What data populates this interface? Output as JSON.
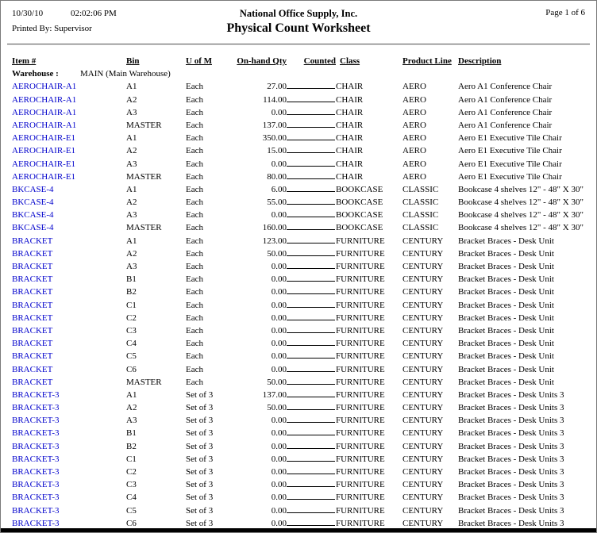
{
  "report": {
    "date": "10/30/10",
    "time": "02:02:06 PM",
    "company": "National Office Supply, Inc.",
    "page_info": "Page 1 of 6",
    "printed_by": "Printed By: Supervisor",
    "title": "Physical Count Worksheet"
  },
  "worksheet": {
    "columns": {
      "item": "Item #",
      "bin": "Bin",
      "uofm": "U of M",
      "qty": "On-hand Qty",
      "counted": "Counted",
      "class": "Class",
      "product_line": "Product Line",
      "description": "Description"
    },
    "warehouse": {
      "label": "Warehouse :",
      "value": "MAIN (Main Warehouse)"
    },
    "rows": [
      {
        "item": "AEROCHAIR-A1",
        "bin": "A1",
        "uofm": "Each",
        "qty": "27.00",
        "class": "CHAIR",
        "product_line": "AERO",
        "description": "Aero A1 Conference Chair"
      },
      {
        "item": "AEROCHAIR-A1",
        "bin": "A2",
        "uofm": "Each",
        "qty": "114.00",
        "class": "CHAIR",
        "product_line": "AERO",
        "description": "Aero A1 Conference Chair"
      },
      {
        "item": "AEROCHAIR-A1",
        "bin": "A3",
        "uofm": "Each",
        "qty": "0.00",
        "class": "CHAIR",
        "product_line": "AERO",
        "description": "Aero A1 Conference Chair"
      },
      {
        "item": "AEROCHAIR-A1",
        "bin": "MASTER",
        "uofm": "Each",
        "qty": "137.00",
        "class": "CHAIR",
        "product_line": "AERO",
        "description": "Aero A1 Conference Chair"
      },
      {
        "item": "AEROCHAIR-E1",
        "bin": "A1",
        "uofm": "Each",
        "qty": "350.00",
        "class": "CHAIR",
        "product_line": "AERO",
        "description": "Aero E1 Executive Tile Chair"
      },
      {
        "item": "AEROCHAIR-E1",
        "bin": "A2",
        "uofm": "Each",
        "qty": "15.00",
        "class": "CHAIR",
        "product_line": "AERO",
        "description": "Aero E1 Executive Tile Chair"
      },
      {
        "item": "AEROCHAIR-E1",
        "bin": "A3",
        "uofm": "Each",
        "qty": "0.00",
        "class": "CHAIR",
        "product_line": "AERO",
        "description": "Aero E1 Executive Tile Chair"
      },
      {
        "item": "AEROCHAIR-E1",
        "bin": "MASTER",
        "uofm": "Each",
        "qty": "80.00",
        "class": "CHAIR",
        "product_line": "AERO",
        "description": "Aero E1 Executive Tile Chair"
      },
      {
        "item": "BKCASE-4",
        "bin": "A1",
        "uofm": "Each",
        "qty": "6.00",
        "class": "BOOKCASE",
        "product_line": "CLASSIC",
        "description": "Bookcase 4 shelves 12\" - 48\" X 30\""
      },
      {
        "item": "BKCASE-4",
        "bin": "A2",
        "uofm": "Each",
        "qty": "55.00",
        "class": "BOOKCASE",
        "product_line": "CLASSIC",
        "description": "Bookcase 4 shelves 12\" - 48\" X 30\""
      },
      {
        "item": "BKCASE-4",
        "bin": "A3",
        "uofm": "Each",
        "qty": "0.00",
        "class": "BOOKCASE",
        "product_line": "CLASSIC",
        "description": "Bookcase 4 shelves 12\" - 48\" X 30\""
      },
      {
        "item": "BKCASE-4",
        "bin": "MASTER",
        "uofm": "Each",
        "qty": "160.00",
        "class": "BOOKCASE",
        "product_line": "CLASSIC",
        "description": "Bookcase 4 shelves 12\" - 48\" X 30\""
      },
      {
        "item": "BRACKET",
        "bin": "A1",
        "uofm": "Each",
        "qty": "123.00",
        "class": "FURNITURE",
        "product_line": "CENTURY",
        "description": "Bracket Braces - Desk Unit"
      },
      {
        "item": "BRACKET",
        "bin": "A2",
        "uofm": "Each",
        "qty": "50.00",
        "class": "FURNITURE",
        "product_line": "CENTURY",
        "description": "Bracket Braces - Desk Unit"
      },
      {
        "item": "BRACKET",
        "bin": "A3",
        "uofm": "Each",
        "qty": "0.00",
        "class": "FURNITURE",
        "product_line": "CENTURY",
        "description": "Bracket Braces - Desk Unit"
      },
      {
        "item": "BRACKET",
        "bin": "B1",
        "uofm": "Each",
        "qty": "0.00",
        "class": "FURNITURE",
        "product_line": "CENTURY",
        "description": "Bracket Braces - Desk Unit"
      },
      {
        "item": "BRACKET",
        "bin": "B2",
        "uofm": "Each",
        "qty": "0.00",
        "class": "FURNITURE",
        "product_line": "CENTURY",
        "description": "Bracket Braces - Desk Unit"
      },
      {
        "item": "BRACKET",
        "bin": "C1",
        "uofm": "Each",
        "qty": "0.00",
        "class": "FURNITURE",
        "product_line": "CENTURY",
        "description": "Bracket Braces - Desk Unit"
      },
      {
        "item": "BRACKET",
        "bin": "C2",
        "uofm": "Each",
        "qty": "0.00",
        "class": "FURNITURE",
        "product_line": "CENTURY",
        "description": "Bracket Braces - Desk Unit"
      },
      {
        "item": "BRACKET",
        "bin": "C3",
        "uofm": "Each",
        "qty": "0.00",
        "class": "FURNITURE",
        "product_line": "CENTURY",
        "description": "Bracket Braces - Desk Unit"
      },
      {
        "item": "BRACKET",
        "bin": "C4",
        "uofm": "Each",
        "qty": "0.00",
        "class": "FURNITURE",
        "product_line": "CENTURY",
        "description": "Bracket Braces - Desk Unit"
      },
      {
        "item": "BRACKET",
        "bin": "C5",
        "uofm": "Each",
        "qty": "0.00",
        "class": "FURNITURE",
        "product_line": "CENTURY",
        "description": "Bracket Braces - Desk Unit"
      },
      {
        "item": "BRACKET",
        "bin": "C6",
        "uofm": "Each",
        "qty": "0.00",
        "class": "FURNITURE",
        "product_line": "CENTURY",
        "description": "Bracket Braces - Desk Unit"
      },
      {
        "item": "BRACKET",
        "bin": "MASTER",
        "uofm": "Each",
        "qty": "50.00",
        "class": "FURNITURE",
        "product_line": "CENTURY",
        "description": "Bracket Braces - Desk Unit"
      },
      {
        "item": "BRACKET-3",
        "bin": "A1",
        "uofm": "Set of 3",
        "qty": "137.00",
        "class": "FURNITURE",
        "product_line": "CENTURY",
        "description": "Bracket Braces - Desk Units 3"
      },
      {
        "item": "BRACKET-3",
        "bin": "A2",
        "uofm": "Set of 3",
        "qty": "50.00",
        "class": "FURNITURE",
        "product_line": "CENTURY",
        "description": "Bracket Braces - Desk Units 3"
      },
      {
        "item": "BRACKET-3",
        "bin": "A3",
        "uofm": "Set of 3",
        "qty": "0.00",
        "class": "FURNITURE",
        "product_line": "CENTURY",
        "description": "Bracket Braces - Desk Units 3"
      },
      {
        "item": "BRACKET-3",
        "bin": "B1",
        "uofm": "Set of 3",
        "qty": "0.00",
        "class": "FURNITURE",
        "product_line": "CENTURY",
        "description": "Bracket Braces - Desk Units 3"
      },
      {
        "item": "BRACKET-3",
        "bin": "B2",
        "uofm": "Set of 3",
        "qty": "0.00",
        "class": "FURNITURE",
        "product_line": "CENTURY",
        "description": "Bracket Braces - Desk Units 3"
      },
      {
        "item": "BRACKET-3",
        "bin": "C1",
        "uofm": "Set of 3",
        "qty": "0.00",
        "class": "FURNITURE",
        "product_line": "CENTURY",
        "description": "Bracket Braces - Desk Units 3"
      },
      {
        "item": "BRACKET-3",
        "bin": "C2",
        "uofm": "Set of 3",
        "qty": "0.00",
        "class": "FURNITURE",
        "product_line": "CENTURY",
        "description": "Bracket Braces - Desk Units 3"
      },
      {
        "item": "BRACKET-3",
        "bin": "C3",
        "uofm": "Set of 3",
        "qty": "0.00",
        "class": "FURNITURE",
        "product_line": "CENTURY",
        "description": "Bracket Braces - Desk Units 3"
      },
      {
        "item": "BRACKET-3",
        "bin": "C4",
        "uofm": "Set of 3",
        "qty": "0.00",
        "class": "FURNITURE",
        "product_line": "CENTURY",
        "description": "Bracket Braces - Desk Units 3"
      },
      {
        "item": "BRACKET-3",
        "bin": "C5",
        "uofm": "Set of 3",
        "qty": "0.00",
        "class": "FURNITURE",
        "product_line": "CENTURY",
        "description": "Bracket Braces - Desk Units 3"
      },
      {
        "item": "BRACKET-3",
        "bin": "C6",
        "uofm": "Set of 3",
        "qty": "0.00",
        "class": "FURNITURE",
        "product_line": "CENTURY",
        "description": "Bracket Braces - Desk Units 3"
      }
    ]
  },
  "colors": {
    "item_link": "#0000CC",
    "text": "#000000",
    "rule": "#606060"
  }
}
